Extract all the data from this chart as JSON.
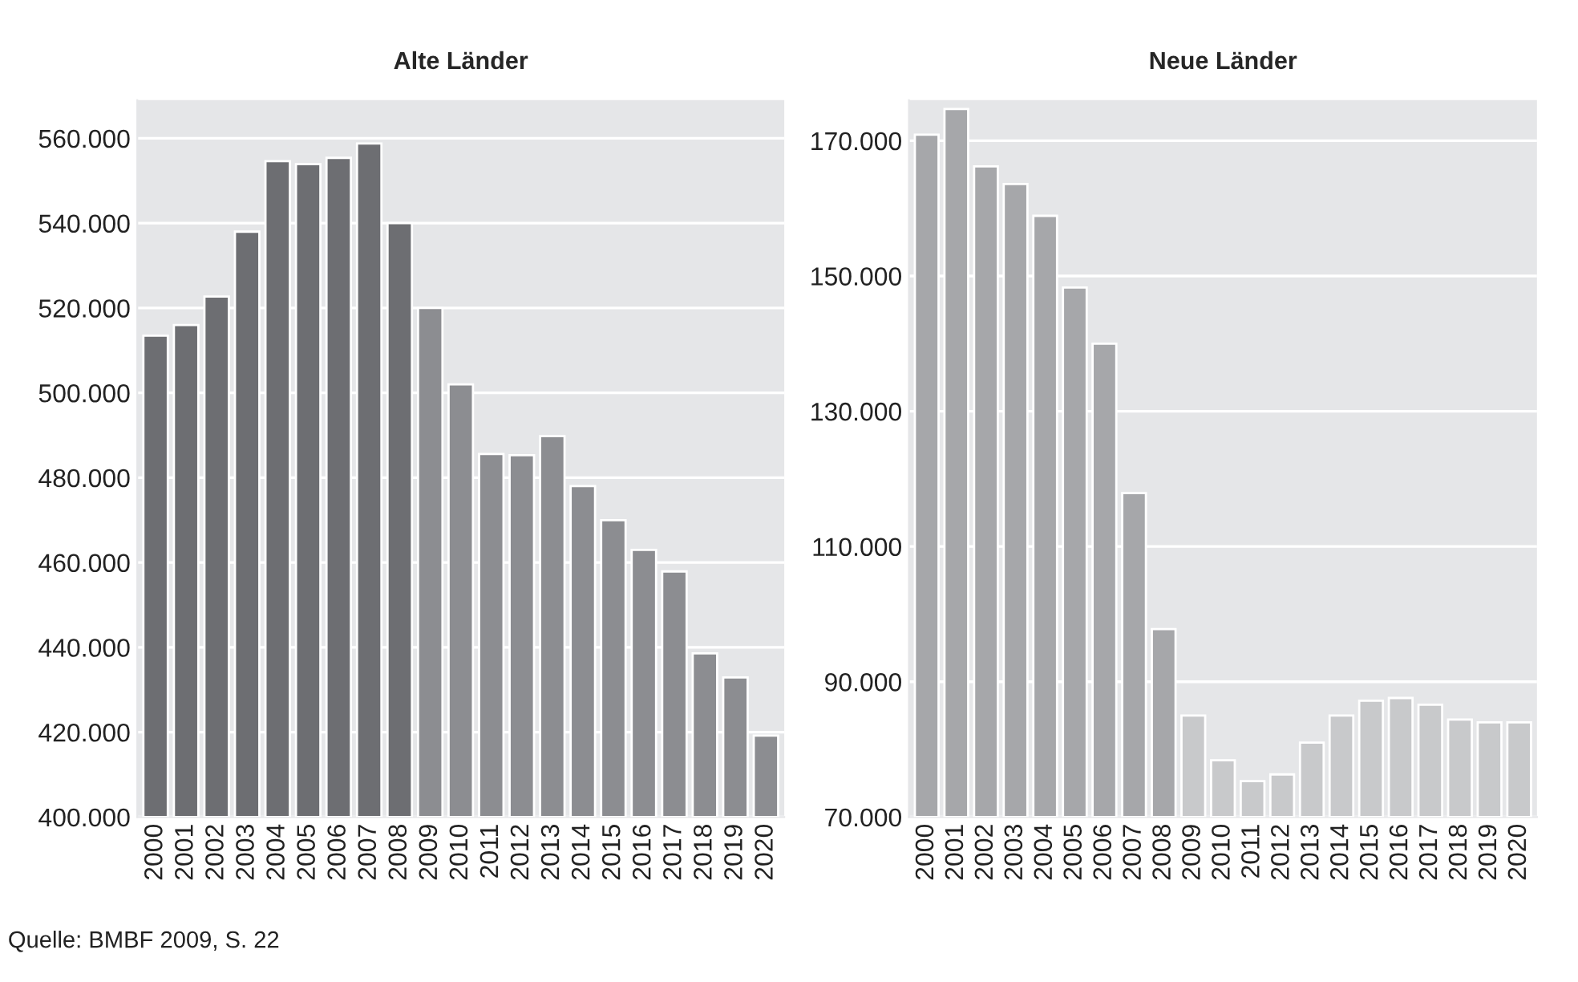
{
  "chart_data": [
    {
      "type": "bar",
      "title": "Alte Länder",
      "categories": [
        "2000",
        "2001",
        "2002",
        "2003",
        "2004",
        "2005",
        "2006",
        "2007",
        "2008",
        "2009",
        "2010",
        "2011",
        "2012",
        "2013",
        "2014",
        "2015",
        "2016",
        "2017",
        "2018",
        "2019",
        "2020"
      ],
      "values": [
        513500,
        516000,
        522700,
        538000,
        554600,
        553900,
        555400,
        558800,
        540000,
        520000,
        502000,
        485600,
        485300,
        489800,
        478000,
        470000,
        463000,
        457900,
        438600,
        432900,
        419200
      ],
      "colors": [
        "#6d6e72",
        "#6d6e72",
        "#6d6e72",
        "#6d6e72",
        "#6d6e72",
        "#6d6e72",
        "#6d6e72",
        "#6d6e72",
        "#6d6e72",
        "#8c8d91",
        "#8c8d91",
        "#8c8d91",
        "#8c8d91",
        "#8c8d91",
        "#8c8d91",
        "#8c8d91",
        "#8c8d91",
        "#8c8d91",
        "#8c8d91",
        "#8c8d91",
        "#8c8d91"
      ],
      "ylim": [
        400000,
        569000
      ],
      "yticks": [
        {
          "value": 400000,
          "label": "400.000"
        },
        {
          "value": 420000,
          "label": "420.000"
        },
        {
          "value": 440000,
          "label": "440.000"
        },
        {
          "value": 460000,
          "label": "460.000"
        },
        {
          "value": 480000,
          "label": "480.000"
        },
        {
          "value": 500000,
          "label": "500.000"
        },
        {
          "value": 520000,
          "label": "520.000"
        },
        {
          "value": 540000,
          "label": "540.000"
        },
        {
          "value": 560000,
          "label": "560.000"
        }
      ],
      "grid": "y",
      "annotations": [
        "Quelle: BMBF 2009, S. 22"
      ]
    },
    {
      "type": "bar",
      "title": "Neue Länder",
      "categories": [
        "2000",
        "2001",
        "2002",
        "2003",
        "2004",
        "2005",
        "2006",
        "2007",
        "2008",
        "2009",
        "2010",
        "2011",
        "2012",
        "2013",
        "2014",
        "2015",
        "2016",
        "2017",
        "2018",
        "2019",
        "2020"
      ],
      "values": [
        170900,
        174700,
        166200,
        163600,
        158900,
        148300,
        140000,
        117900,
        97800,
        85000,
        78400,
        75300,
        76300,
        81000,
        85000,
        87200,
        87600,
        86600,
        84400,
        84000,
        84000
      ],
      "colors": [
        "#a6a7aa",
        "#a6a7aa",
        "#a6a7aa",
        "#a6a7aa",
        "#a6a7aa",
        "#a6a7aa",
        "#a6a7aa",
        "#a6a7aa",
        "#a6a7aa",
        "#c8c9cb",
        "#c8c9cb",
        "#c8c9cb",
        "#c8c9cb",
        "#c8c9cb",
        "#c8c9cb",
        "#c8c9cb",
        "#c8c9cb",
        "#c8c9cb",
        "#c8c9cb",
        "#c8c9cb",
        "#c8c9cb"
      ],
      "ylim": [
        70000,
        176000
      ],
      "yticks": [
        {
          "value": 70000,
          "label": "70.000"
        },
        {
          "value": 90000,
          "label": "90.000"
        },
        {
          "value": 110000,
          "label": "110.000"
        },
        {
          "value": 130000,
          "label": "130.000"
        },
        {
          "value": 150000,
          "label": "150.000"
        },
        {
          "value": 170000,
          "label": "170.000"
        }
      ],
      "grid": "y"
    }
  ]
}
